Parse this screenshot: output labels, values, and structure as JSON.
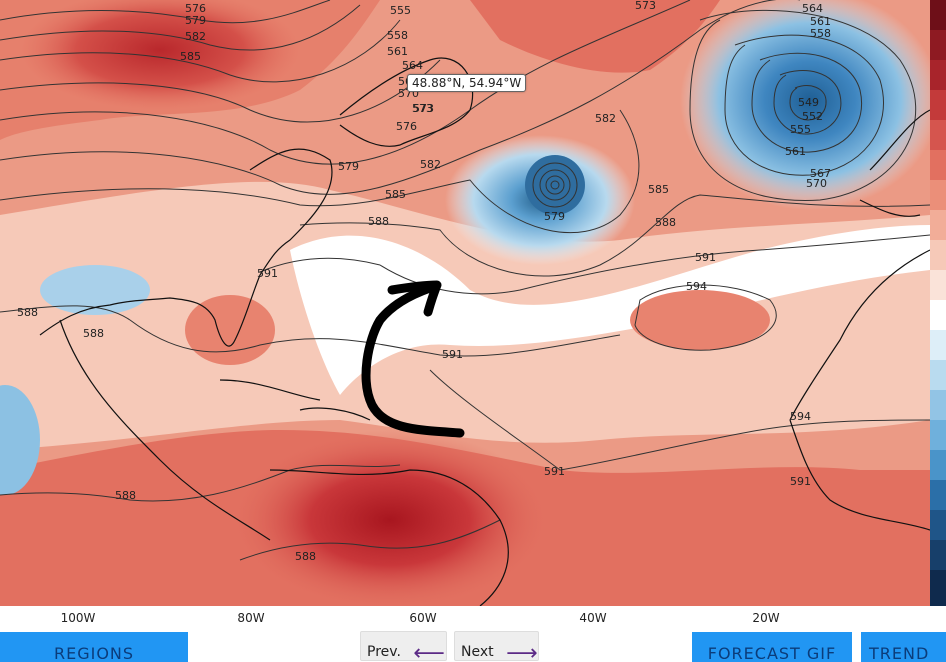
{
  "map": {
    "coordinate_readout": "48.88°N, 54.94°W",
    "lon_labels": [
      "100W",
      "80W",
      "60W",
      "40W",
      "20W"
    ],
    "contour_labels": [
      "576",
      "579",
      "582",
      "585",
      "555",
      "558",
      "561",
      "564",
      "567",
      "570",
      "573",
      "573",
      "576",
      "579",
      "582",
      "585",
      "588",
      "591",
      "594",
      "591",
      "591",
      "588",
      "588",
      "588",
      "591",
      "594",
      "591",
      "573",
      "564",
      "561",
      "558",
      "549",
      "552",
      "555",
      "561",
      "567",
      "570",
      "579",
      "582",
      "585",
      "588",
      "591"
    ]
  },
  "buttons": {
    "regions": "REGIONS",
    "prev": "Prev.",
    "next": "Next",
    "forecast_gif": "FORECAST GIF",
    "trend": "TREND"
  },
  "colors": {
    "warm_dark": "#b8242b",
    "warm_mid": "#e27060",
    "warm_light": "#f6c9b8",
    "neutral": "#ffffff",
    "cool_light": "#b9dbef",
    "cool_mid": "#6fb0dc",
    "cool_dark": "#2b6fa8",
    "button_blue": "#2196f3",
    "arrow_purple": "#5b2a86"
  }
}
